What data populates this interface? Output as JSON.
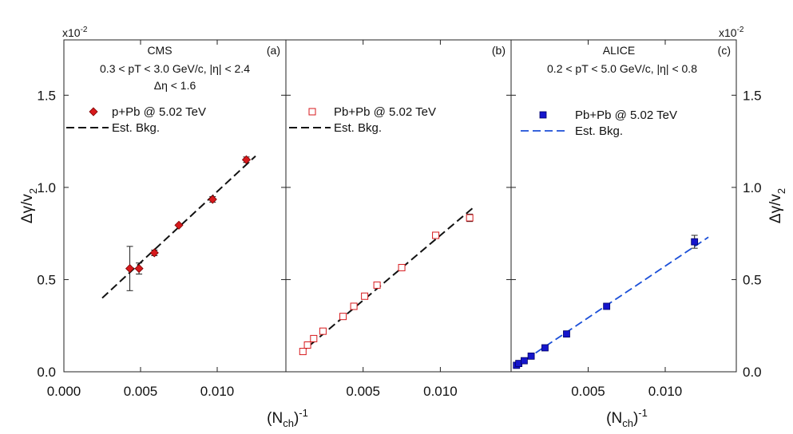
{
  "colors": {
    "cms": "#d7191c",
    "pbpb_open": "#d7191c",
    "alice": "#1515cc",
    "cms_line": "#111111",
    "alice_line": "#1b4fd8"
  },
  "multiplier_left": "x10",
  "multiplier_right": "x10",
  "multiplier_exp": "-2",
  "ylabel_main": "Δγ/v",
  "ylabel_sub": "2",
  "xlabel_main": "(N",
  "xlabel_sub": "ch",
  "xlabel_close": ")",
  "xlabel_sup": "-1",
  "chart_data": [
    {
      "type": "scatter",
      "panel": "(a)",
      "experiment": "CMS",
      "header_lines": [
        "0.3 < pT < 3.0 GeV/c,   |η| < 2.4",
        "Δη < 1.6"
      ],
      "series": [
        {
          "name": "p+Pb @ 5.02 TeV",
          "marker": "filled-diamond",
          "x": [
            0.0043,
            0.0049,
            0.0059,
            0.0075,
            0.0097,
            0.0119
          ],
          "y": [
            0.56,
            0.56,
            0.645,
            0.795,
            0.935,
            1.15
          ],
          "yerr": [
            0.12,
            0.03,
            0.015,
            0.012,
            0.015,
            0.015
          ]
        },
        {
          "name": "Est. Bkg.",
          "style": "dashed",
          "x": [
            0.0025,
            0.0125
          ],
          "y": [
            0.4,
            1.17
          ]
        }
      ],
      "xlim": [
        0.0,
        0.0145
      ],
      "xticks": [
        0.0,
        0.005,
        0.01
      ],
      "xtick_labels": [
        "0.000",
        "0.005",
        "0.010"
      ],
      "ylim": [
        0.0,
        1.8
      ],
      "yticks": [
        0.0,
        0.5,
        1.0,
        1.5
      ],
      "ytick_labels": [
        "0.0",
        "0.5",
        "1.0",
        "1.5"
      ]
    },
    {
      "type": "scatter",
      "panel": "(b)",
      "experiment": "",
      "header_lines": [],
      "series": [
        {
          "name": "Pb+Pb @ 5.02 TeV",
          "marker": "open-square",
          "x": [
            0.0011,
            0.0014,
            0.0018,
            0.0024,
            0.0037,
            0.0044,
            0.0051,
            0.0059,
            0.0075,
            0.0097,
            0.0119
          ],
          "y": [
            0.11,
            0.145,
            0.18,
            0.22,
            0.3,
            0.355,
            0.41,
            0.47,
            0.565,
            0.74,
            0.835
          ],
          "yerr": [
            0.005,
            0.005,
            0.005,
            0.005,
            0.005,
            0.005,
            0.005,
            0.005,
            0.005,
            0.01,
            0.02
          ]
        },
        {
          "name": "Est. Bkg.",
          "style": "dashed",
          "x": [
            0.001,
            0.0122
          ],
          "y": [
            0.105,
            0.895
          ]
        }
      ],
      "xlim": [
        0.0,
        0.0145
      ],
      "xticks": [
        0.005,
        0.01
      ],
      "xtick_labels": [
        "0.005",
        "0.010"
      ],
      "ylim": [
        0.0,
        1.8
      ],
      "yticks": [
        0.0,
        0.5,
        1.0,
        1.5
      ],
      "ytick_labels": []
    },
    {
      "type": "scatter",
      "panel": "(c)",
      "experiment": "ALICE",
      "header_lines": [
        "0.2 < pT < 5.0 GeV/c,   |η| < 0.8"
      ],
      "series": [
        {
          "name": "Pb+Pb @ 5.02 TeV",
          "marker": "filled-square",
          "x": [
            0.00035,
            0.0005,
            0.00085,
            0.0013,
            0.0022,
            0.0036,
            0.0062,
            0.0119
          ],
          "y": [
            0.035,
            0.045,
            0.06,
            0.085,
            0.13,
            0.205,
            0.355,
            0.705
          ],
          "yerr": [
            0.005,
            0.005,
            0.005,
            0.006,
            0.006,
            0.008,
            0.01,
            0.035
          ]
        },
        {
          "name": "Est. Bkg.",
          "style": "dashed",
          "x": [
            0.0003,
            0.0128
          ],
          "y": [
            0.03,
            0.73
          ]
        }
      ],
      "xlim": [
        0.0,
        0.0145
      ],
      "xticks": [
        0.005,
        0.01
      ],
      "xtick_labels": [
        "0.005",
        "0.010"
      ],
      "ylim": [
        0.0,
        1.8
      ],
      "yticks": [
        0.0,
        0.5,
        1.0,
        1.5
      ],
      "ytick_labels": [
        "0.0",
        "0.5",
        "1.0",
        "1.5"
      ]
    }
  ]
}
